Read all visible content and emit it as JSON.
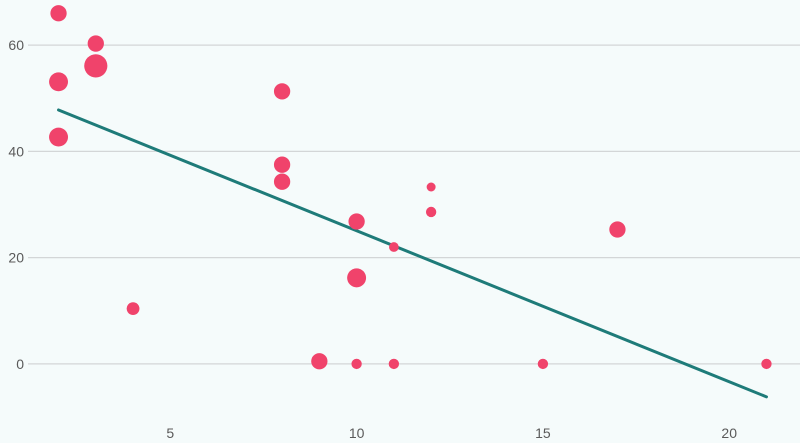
{
  "chart_data": {
    "type": "scatter",
    "title": "",
    "xlabel": "",
    "ylabel": "",
    "xlim": [
      1.1,
      21.9
    ],
    "ylim": [
      -11.5,
      68.5
    ],
    "x_ticks": [
      5,
      10,
      15,
      20
    ],
    "y_ticks": [
      0,
      20,
      40,
      60
    ],
    "grid": "horizontal",
    "legend": "none",
    "colors": {
      "background": "#f5fbfb",
      "points": "#f0436b",
      "trend_line": "#1e7b79",
      "grid": "#d3d6d7",
      "tick_text": "#5a5a5a"
    },
    "points": [
      {
        "x": 2,
        "y": 66,
        "size": 2
      },
      {
        "x": 3,
        "y": 60.3,
        "size": 2
      },
      {
        "x": 3,
        "y": 56.1,
        "size": 5
      },
      {
        "x": 2,
        "y": 53.1,
        "size": 3
      },
      {
        "x": 2,
        "y": 42.7,
        "size": 3
      },
      {
        "x": 4,
        "y": 10.4,
        "size": 1
      },
      {
        "x": 8,
        "y": 51.3,
        "size": 2
      },
      {
        "x": 8,
        "y": 37.5,
        "size": 2
      },
      {
        "x": 8,
        "y": 34.3,
        "size": 2
      },
      {
        "x": 9,
        "y": 0.5,
        "size": 2
      },
      {
        "x": 10,
        "y": 26.8,
        "size": 2
      },
      {
        "x": 10,
        "y": 16.2,
        "size": 3
      },
      {
        "x": 10,
        "y": 0,
        "size": 0.5
      },
      {
        "x": 11,
        "y": 22,
        "size": 0.4
      },
      {
        "x": 11,
        "y": 0,
        "size": 0.5
      },
      {
        "x": 12,
        "y": 33.3,
        "size": 0.3
      },
      {
        "x": 12,
        "y": 28.6,
        "size": 0.5
      },
      {
        "x": 15,
        "y": 0,
        "size": 0.5
      },
      {
        "x": 17,
        "y": 25.3,
        "size": 2
      },
      {
        "x": 21,
        "y": 0,
        "size": 0.5
      }
    ],
    "trend_line": {
      "x": [
        2,
        21
      ],
      "y": [
        47.8,
        -6.2
      ]
    }
  }
}
